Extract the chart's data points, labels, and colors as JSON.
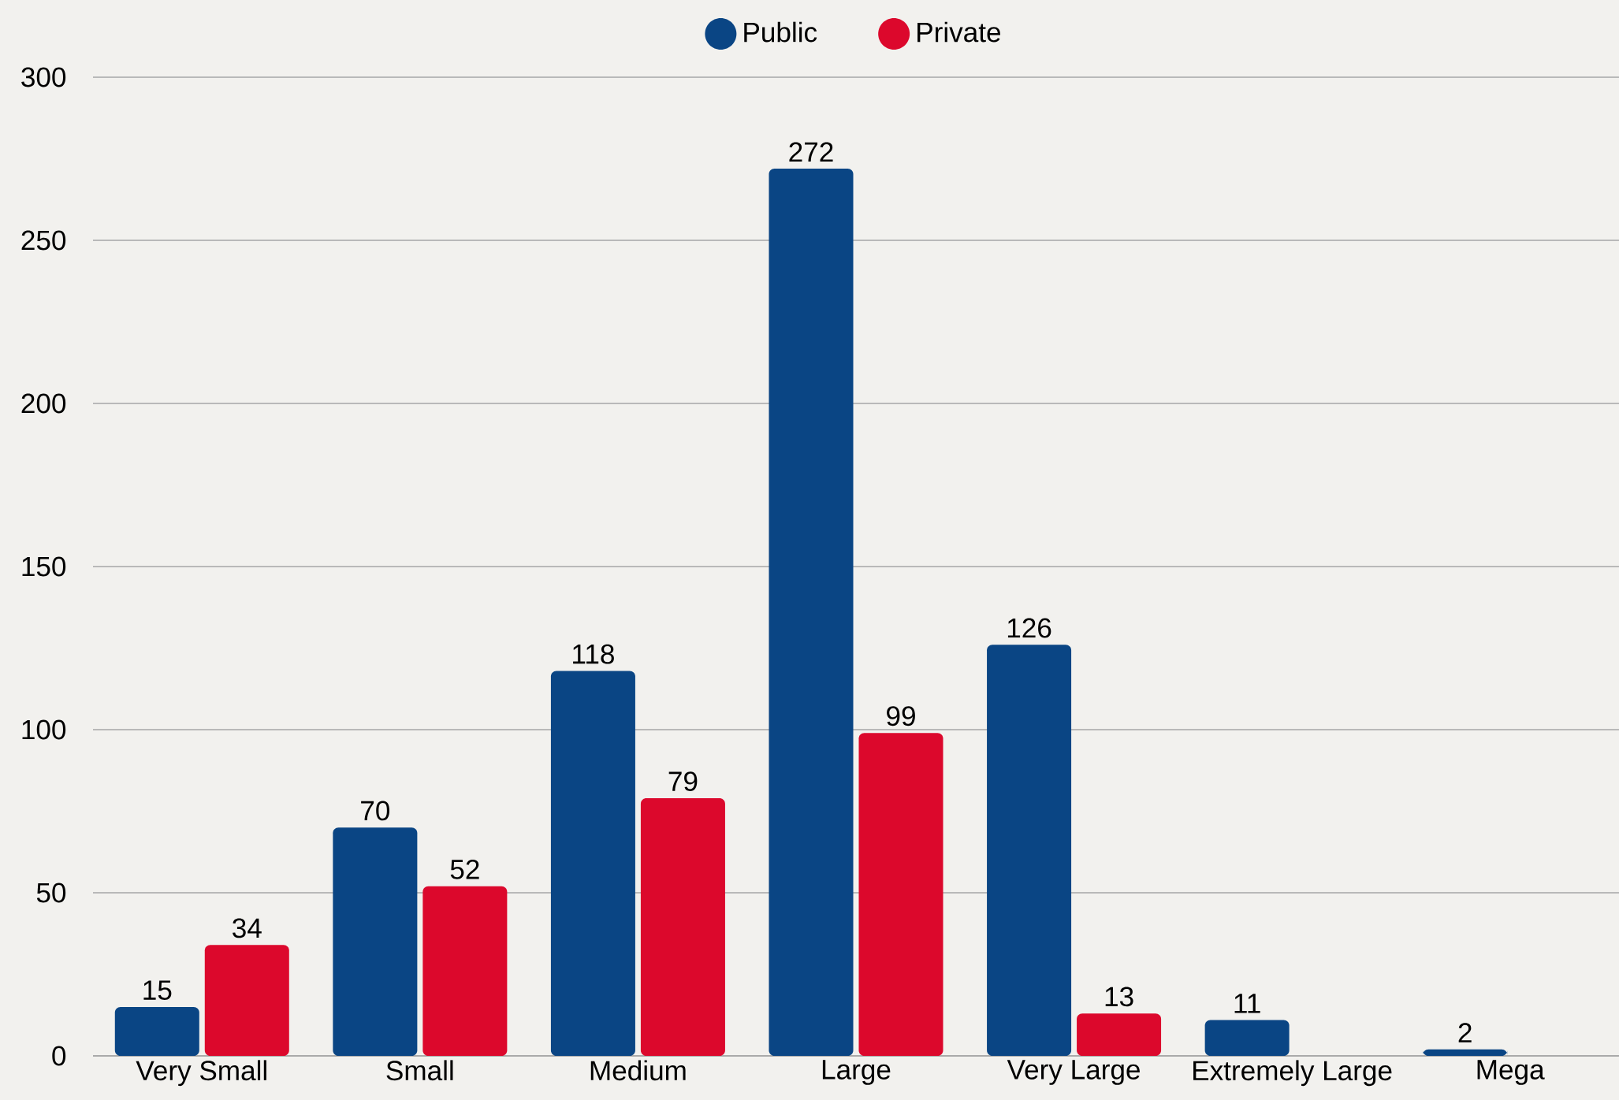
{
  "chart_data": {
    "type": "bar",
    "categories": [
      "Very Small",
      "Small",
      "Medium",
      "Large",
      "Very Large",
      "Extremely Large",
      "Mega"
    ],
    "series": [
      {
        "name": "Public",
        "color": "#0a4584",
        "values": [
          15,
          70,
          118,
          272,
          126,
          11,
          2
        ]
      },
      {
        "name": "Private",
        "color": "#dc082c",
        "values": [
          34,
          52,
          79,
          99,
          13,
          null,
          null
        ]
      }
    ],
    "ylim": [
      0,
      300
    ],
    "yticks": [
      0,
      50,
      100,
      150,
      200,
      250,
      300
    ],
    "grid": "y",
    "legend": "top",
    "data_labels": true
  }
}
